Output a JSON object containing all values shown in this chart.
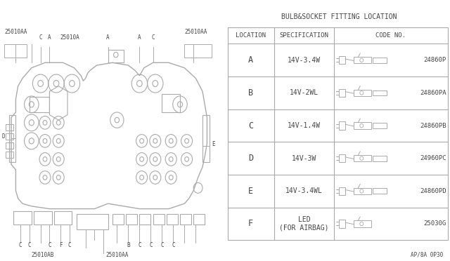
{
  "bg_color": "#ffffff",
  "title_table": "BULB&SOCKET FITTING LOCATION",
  "table_headers": [
    "LOCATION",
    "SPECIFICATION",
    "CODE NO."
  ],
  "table_rows": [
    [
      "A",
      "14V-3.4W",
      "24860P"
    ],
    [
      "B",
      "14V-2WL",
      "24860PA"
    ],
    [
      "C",
      "14V-1.4W",
      "24860PB"
    ],
    [
      "D",
      "14V-3W",
      "24960PC"
    ],
    [
      "E",
      "14V-3.4WL",
      "24860PD"
    ],
    [
      "F",
      "LED\n(FOR AIRBAG)",
      "25030G"
    ]
  ],
  "part_number": "AP/8A 0P30",
  "line_color": "#aaaaaa",
  "text_color": "#444444",
  "table_line_color": "#aaaaaa",
  "diag_line_color": "#aaaaaa"
}
